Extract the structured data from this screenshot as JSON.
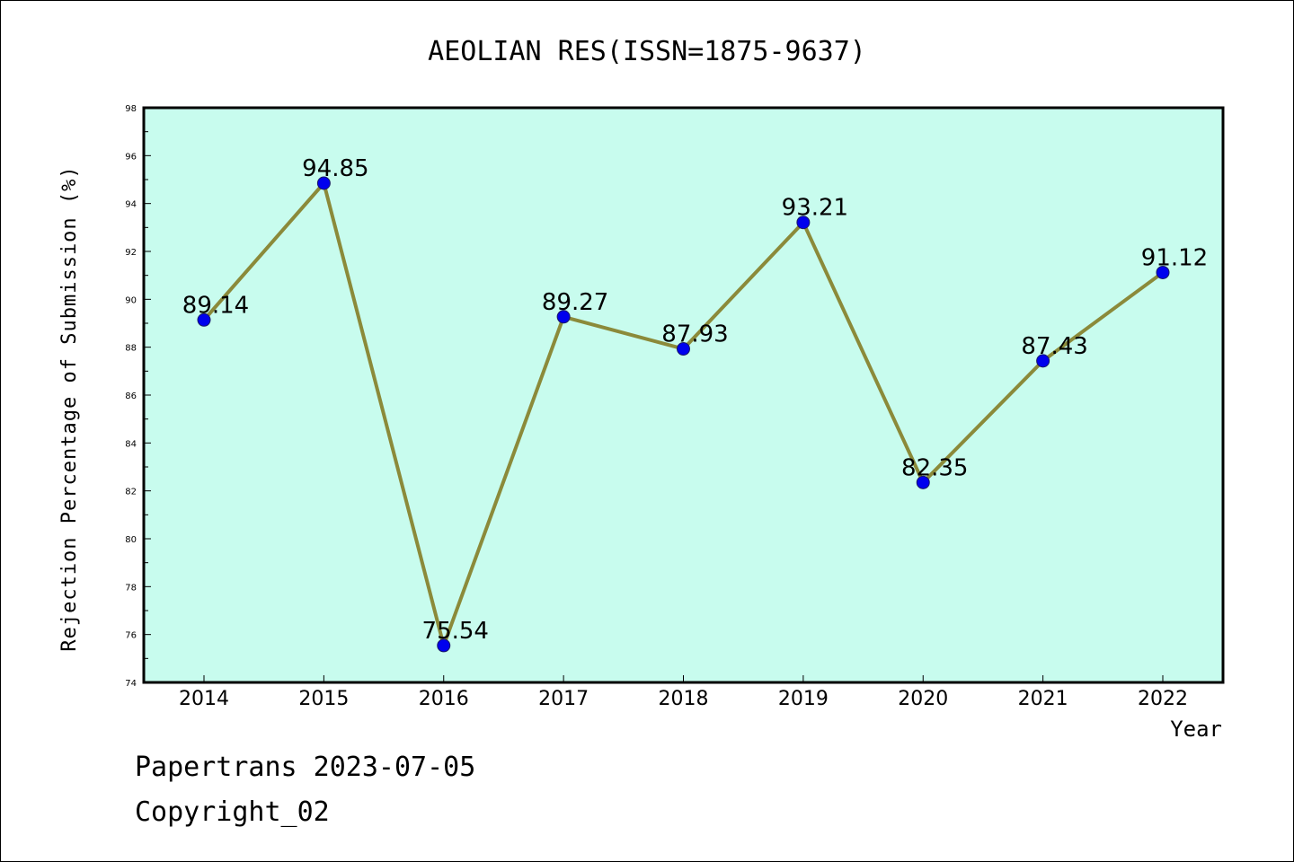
{
  "chart_data": {
    "type": "line",
    "title": "AEOLIAN RES(ISSN=1875-9637)",
    "xlabel": "Year",
    "ylabel": "Rejection Percentage of Submission (%)",
    "categories": [
      "2014",
      "2015",
      "2016",
      "2017",
      "2018",
      "2019",
      "2020",
      "2021",
      "2022"
    ],
    "values": [
      89.14,
      94.85,
      75.54,
      89.27,
      87.93,
      93.21,
      82.35,
      87.43,
      91.12
    ],
    "data_labels": [
      "89.14",
      "94.85",
      "75.54",
      "89.27",
      "87.93",
      "93.21",
      "82.35",
      "87.43",
      "91.12"
    ],
    "ylim": [
      74,
      98
    ],
    "yticks": [
      74,
      76,
      78,
      80,
      82,
      84,
      86,
      88,
      90,
      92,
      94,
      96,
      98
    ],
    "grid": false,
    "colors": {
      "plot_background": "#c8fcee",
      "line": "#8b8a3a",
      "marker": "#0000ee"
    }
  },
  "footer": {
    "line1": "Papertrans 2023-07-05",
    "line2": "Copyright_02"
  }
}
